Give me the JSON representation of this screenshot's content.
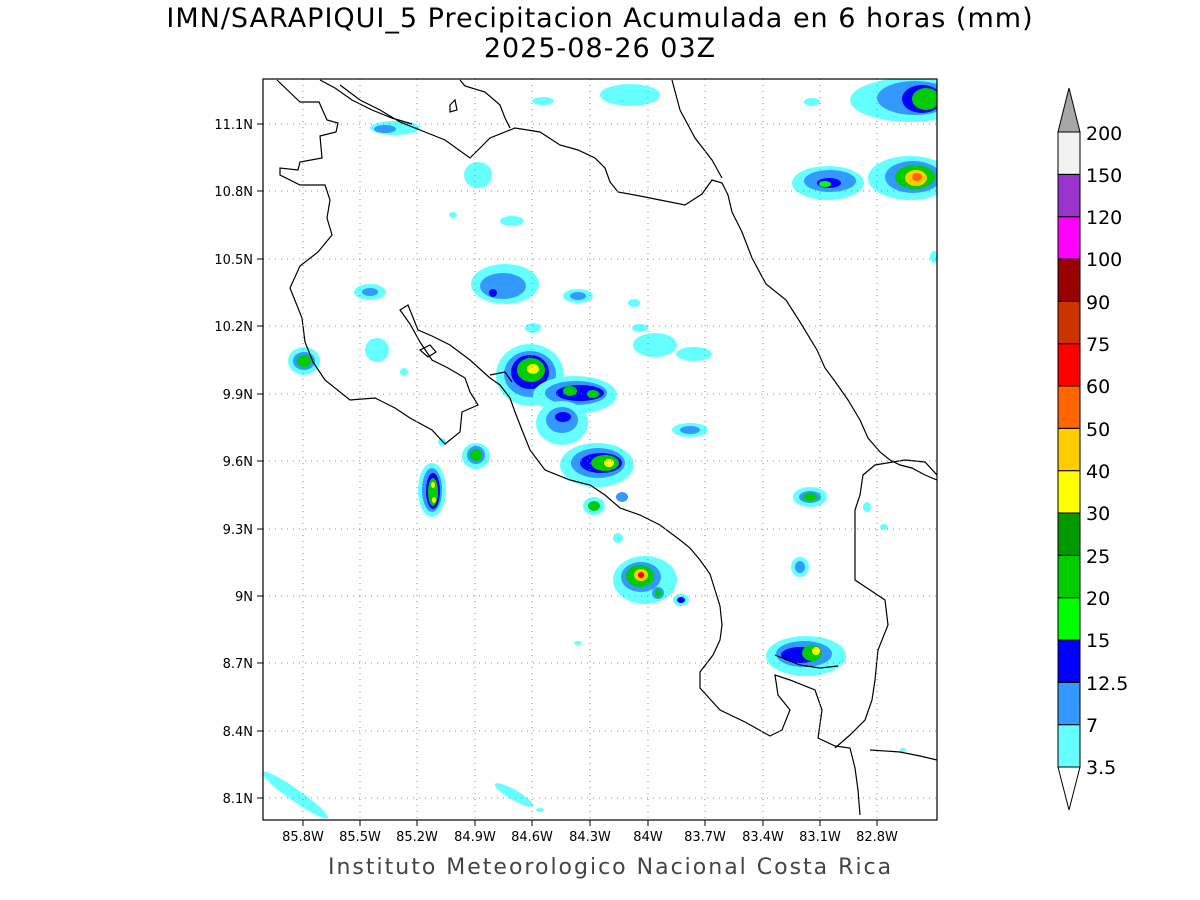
{
  "title": {
    "line1": "IMN/SARAPIQUI_5 Precipitacion Acumulada en 6 horas (mm)",
    "line2": "2025-08-26 03Z"
  },
  "footer": "Instituto Meteorologico Nacional Costa Rica",
  "map": {
    "lon_range": [
      -86.0,
      -82.6
    ],
    "lat_range": [
      8.0,
      11.3
    ],
    "lon_ticks": [
      "85.8W",
      "85.5W",
      "85.2W",
      "84.9W",
      "84.6W",
      "84.3W",
      "84W",
      "83.7W",
      "83.4W",
      "83.1W",
      "82.8W"
    ],
    "lat_ticks": [
      "11.1N",
      "10.8N",
      "10.5N",
      "10.2N",
      "9.9N",
      "9.6N",
      "9.3N",
      "9N",
      "8.7N",
      "8.4N",
      "8.1N"
    ],
    "grid": "dotted"
  },
  "colorbar": {
    "levels": [
      "3.5",
      "7",
      "12.5",
      "15",
      "20",
      "25",
      "30",
      "40",
      "50",
      "60",
      "75",
      "90",
      "100",
      "120",
      "150",
      "200"
    ],
    "colors": [
      "#66ffff",
      "#3399ff",
      "#0000ff",
      "#00ff00",
      "#00cc00",
      "#009900",
      "#ffff00",
      "#ffcc00",
      "#ff6600",
      "#ff0000",
      "#cc3300",
      "#990000",
      "#ff00ff",
      "#9933cc",
      "#f2f2f2"
    ],
    "below_color": "#ffffff",
    "above_color": "#a6a6a6"
  }
}
